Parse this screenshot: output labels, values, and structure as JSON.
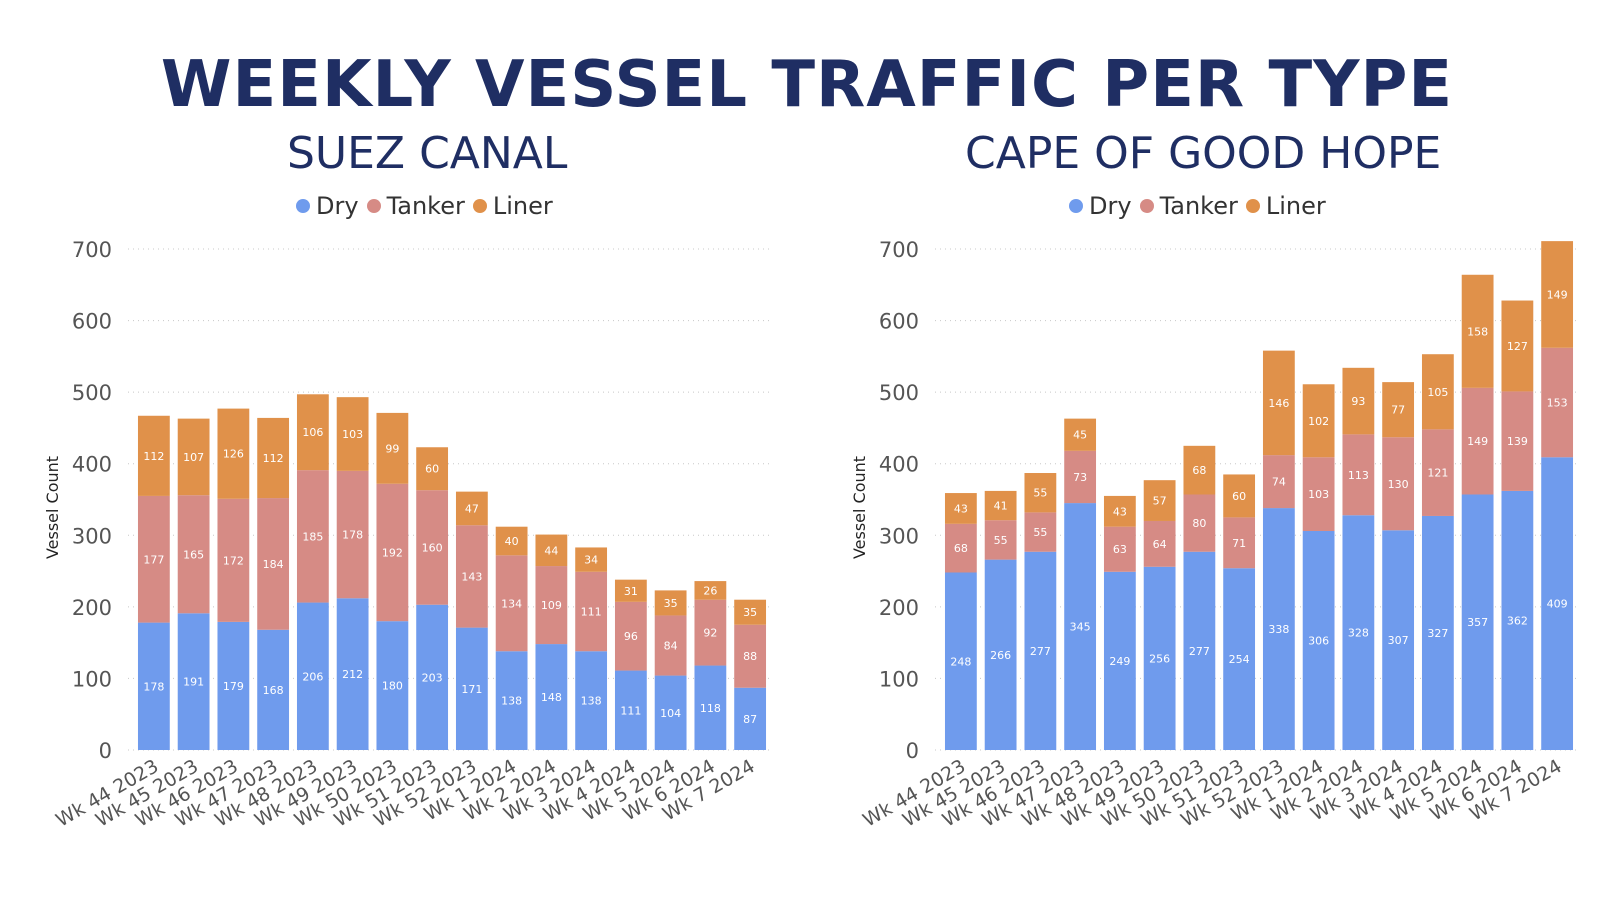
{
  "title": "WEEKLY VESSEL TRAFFIC PER TYPE",
  "colors": {
    "Dry": "#6f9bed",
    "Tanker": "#d68b85",
    "Liner": "#e0914a"
  },
  "chart_data": [
    {
      "type": "bar",
      "stacked": true,
      "title": "SUEZ CANAL",
      "ylabel": "Vessel Count",
      "xlabel": "",
      "ylim": [
        0,
        700
      ],
      "yticks": [
        0,
        100,
        200,
        300,
        400,
        500,
        600,
        700
      ],
      "grid": true,
      "legend": "top",
      "categories": [
        "Wk 44 2023",
        "Wk 45 2023",
        "Wk 46 2023",
        "Wk 47 2023",
        "Wk 48 2023",
        "Wk 49 2023",
        "Wk 50 2023",
        "Wk 51 2023",
        "Wk 52 2023",
        "Wk 1 2024",
        "Wk 2 2024",
        "Wk 3 2024",
        "Wk 4 2024",
        "Wk 5 2024",
        "Wk 6 2024",
        "Wk 7 2024"
      ],
      "series": [
        {
          "name": "Dry",
          "values": [
            178,
            191,
            179,
            168,
            206,
            212,
            180,
            203,
            171,
            138,
            148,
            138,
            111,
            104,
            118,
            87
          ]
        },
        {
          "name": "Tanker",
          "values": [
            177,
            165,
            172,
            184,
            185,
            178,
            192,
            160,
            143,
            134,
            109,
            111,
            96,
            84,
            92,
            88
          ]
        },
        {
          "name": "Liner",
          "values": [
            112,
            107,
            126,
            112,
            106,
            103,
            99,
            60,
            47,
            40,
            44,
            34,
            31,
            35,
            26,
            35
          ]
        }
      ]
    },
    {
      "type": "bar",
      "stacked": true,
      "title": "CAPE OF GOOD HOPE",
      "ylabel": "Vessel Count",
      "xlabel": "",
      "ylim": [
        0,
        700
      ],
      "yticks": [
        0,
        100,
        200,
        300,
        400,
        500,
        600,
        700
      ],
      "grid": true,
      "legend": "top",
      "categories": [
        "Wk 44 2023",
        "Wk 45 2023",
        "Wk 46 2023",
        "Wk 47 2023",
        "Wk 48 2023",
        "Wk 49 2023",
        "Wk 50 2023",
        "Wk 51 2023",
        "Wk 52 2023",
        "Wk 1 2024",
        "Wk 2 2024",
        "Wk 3 2024",
        "Wk 4 2024",
        "Wk 5 2024",
        "Wk 6 2024",
        "Wk 7 2024"
      ],
      "series": [
        {
          "name": "Dry",
          "values": [
            248,
            266,
            277,
            345,
            249,
            256,
            277,
            254,
            338,
            306,
            328,
            307,
            327,
            357,
            362,
            409
          ]
        },
        {
          "name": "Tanker",
          "values": [
            68,
            55,
            55,
            73,
            63,
            64,
            80,
            71,
            74,
            103,
            113,
            130,
            121,
            149,
            139,
            153
          ]
        },
        {
          "name": "Liner",
          "values": [
            43,
            41,
            55,
            45,
            43,
            57,
            68,
            60,
            146,
            102,
            93,
            77,
            105,
            158,
            127,
            149
          ]
        }
      ]
    }
  ]
}
